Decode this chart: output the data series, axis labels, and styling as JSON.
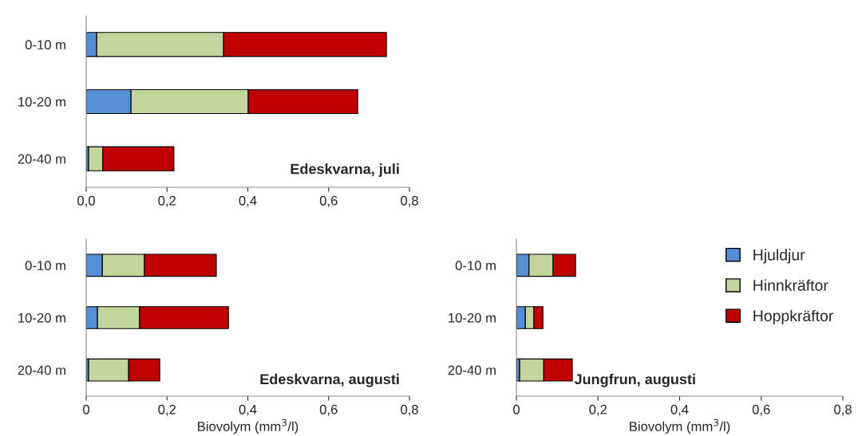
{
  "chart_data": [
    {
      "type": "bar",
      "orientation": "horizontal",
      "stacked": true,
      "categories": [
        "0-10 m",
        "10-20 m",
        "20-40 m"
      ],
      "series": [
        {
          "color": "#558ed5",
          "values": [
            0.026,
            0.111,
            0.006
          ]
        },
        {
          "color": "#c3d69b",
          "values": [
            0.314,
            0.29,
            0.035
          ]
        },
        {
          "color": "#c00000",
          "values": [
            0.403,
            0.271,
            0.176
          ]
        }
      ],
      "xlim": [
        0,
        0.8
      ],
      "xticks": [
        {
          "value": 0,
          "label": "0,0"
        },
        {
          "value": 0.2,
          "label": "0,2"
        },
        {
          "value": 0.4,
          "label": "0,4"
        },
        {
          "value": 0.6,
          "label": "0,6"
        },
        {
          "value": 0.8,
          "label": "0,8"
        }
      ],
      "annotations": [
        "Edeskvarna, juli"
      ],
      "grid": false,
      "legend": false
    },
    {
      "type": "bar",
      "orientation": "horizontal",
      "stacked": true,
      "categories": [
        "0-10 m",
        "10-20 m",
        "20-40 m"
      ],
      "series": [
        {
          "color": "#558ed5",
          "values": [
            0.04,
            0.028,
            0.006
          ]
        },
        {
          "color": "#c3d69b",
          "values": [
            0.104,
            0.104,
            0.099
          ]
        },
        {
          "color": "#c00000",
          "values": [
            0.178,
            0.22,
            0.077
          ]
        }
      ],
      "xlim": [
        0,
        0.8
      ],
      "xticks": [
        0,
        {
          "value": 0.2,
          "label": "0,2"
        },
        {
          "value": 0.4,
          "label": "0,4"
        },
        {
          "value": 0.6,
          "label": "0,6"
        },
        {
          "value": 0.8,
          "label": "0,8"
        }
      ],
      "xlabel": "Biovolym (mm$^{3}$/l)",
      "annotations": [
        "Edeskvarna, augusti"
      ],
      "grid": false,
      "legend": false
    },
    {
      "type": "bar",
      "orientation": "horizontal",
      "stacked": true,
      "categories": [
        "0-10 m",
        "10-20 m",
        "20-40 m"
      ],
      "series": [
        {
          "name": "Hjuldjur",
          "color": "#558ed5",
          "values": [
            0.031,
            0.022,
            0.008
          ]
        },
        {
          "name": "Hinnkräftor",
          "color": "#c3d69b",
          "values": [
            0.059,
            0.021,
            0.059
          ]
        },
        {
          "name": "Hoppkräftor",
          "color": "#c00000",
          "values": [
            0.055,
            0.022,
            0.07
          ]
        }
      ],
      "xlim": [
        0,
        0.8
      ],
      "xticks": [
        0,
        {
          "value": 0.2,
          "label": "0,2"
        },
        {
          "value": 0.4,
          "label": "0,4"
        },
        {
          "value": 0.6,
          "label": "0,6"
        },
        {
          "value": 0.8,
          "label": "0,8"
        }
      ],
      "xlabel": "Biovolym (mm$^{3}$/l)",
      "annotations": [
        "Jungfrun, augusti"
      ],
      "grid": false,
      "legend": "top right"
    }
  ]
}
